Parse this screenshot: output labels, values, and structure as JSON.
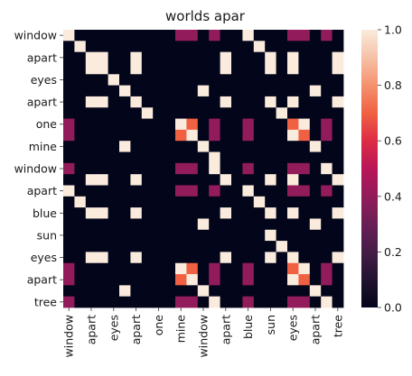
{
  "chart_data": {
    "type": "heatmap",
    "title": "worlds apar",
    "xlabel": "",
    "ylabel": "",
    "row_labels": [
      "window",
      "apart",
      "eyes",
      "apart",
      "one",
      "mine",
      "window",
      "apart",
      "blue",
      "sun",
      "eyes",
      "apart",
      "tree"
    ],
    "col_labels": [
      "window",
      "apart",
      "eyes",
      "apart",
      "one",
      "mine",
      "window",
      "apart",
      "blue",
      "sun",
      "eyes",
      "apart",
      "tree"
    ],
    "cell_labels": [
      "window",
      "",
      "apart",
      "",
      "eyes",
      "",
      "apart",
      "",
      "one",
      "",
      "mine",
      "",
      "window",
      "",
      "apart",
      "",
      "blue",
      "",
      "sun",
      "",
      "eyes",
      "",
      "apart",
      "",
      "tree",
      ""
    ],
    "grid_size": 25,
    "colorbar": {
      "range": [
        0,
        1
      ],
      "ticks": [
        "0.0",
        "0.2",
        "0.4",
        "0.6",
        "0.8",
        "1.0"
      ]
    },
    "colormap": "rocket",
    "grid": false,
    "values": [
      [
        1,
        0,
        0,
        0,
        0,
        0,
        0,
        0,
        0,
        0,
        0.4,
        0.4,
        0,
        0.4,
        0,
        0,
        1,
        0,
        0,
        0,
        0.4,
        0.4,
        0,
        0.4,
        0
      ],
      [
        0,
        1,
        0,
        0,
        0,
        0,
        0,
        0,
        0,
        0,
        0,
        0,
        0,
        0,
        0,
        0,
        0,
        1,
        0,
        0,
        0,
        0,
        0,
        0,
        0
      ],
      [
        0,
        0,
        1,
        1,
        0,
        0,
        1,
        0,
        0,
        0,
        0,
        0,
        0,
        0,
        1,
        0,
        0,
        0,
        1,
        0,
        1,
        0,
        0,
        0,
        1
      ],
      [
        0,
        0,
        1,
        1,
        0,
        0,
        1,
        0,
        0,
        0,
        0,
        0,
        0,
        0,
        1,
        0,
        0,
        0,
        1,
        0,
        1,
        0,
        0,
        0,
        1
      ],
      [
        0,
        0,
        0,
        0,
        1,
        0,
        0,
        0,
        0,
        0,
        0,
        0,
        0,
        0,
        0,
        0,
        0,
        0,
        0,
        0,
        0,
        0,
        0,
        0,
        0
      ],
      [
        0,
        0,
        0,
        0,
        0,
        1,
        0,
        0,
        0,
        0,
        0,
        0,
        1,
        0,
        0,
        0,
        0,
        0,
        0,
        0,
        0,
        0,
        1,
        0,
        0
      ],
      [
        0,
        0,
        1,
        1,
        0,
        0,
        1,
        0,
        0,
        0,
        0,
        0,
        0,
        0,
        1,
        0,
        0,
        0,
        1,
        0,
        1,
        0,
        0,
        0,
        1
      ],
      [
        0,
        0,
        0,
        0,
        0,
        0,
        0,
        1,
        0,
        0,
        0,
        0,
        0,
        0,
        0,
        0,
        0,
        0,
        0,
        1,
        0,
        0,
        0,
        0,
        0
      ],
      [
        0.4,
        0,
        0,
        0,
        0,
        0,
        0,
        0,
        0,
        0,
        1,
        0.7,
        0,
        0.4,
        0,
        0,
        0.4,
        0,
        0,
        0,
        0.7,
        1,
        0,
        0.4,
        0
      ],
      [
        0.4,
        0,
        0,
        0,
        0,
        0,
        0,
        0,
        0,
        0,
        0.7,
        1,
        0,
        0.4,
        0,
        0,
        0.4,
        0,
        0,
        0,
        1,
        0.7,
        0,
        0.4,
        0
      ],
      [
        0,
        0,
        0,
        0,
        0,
        1,
        0,
        0,
        0,
        0,
        0,
        0,
        1,
        0,
        0,
        0,
        0,
        0,
        0,
        0,
        0,
        0,
        1,
        0,
        0
      ],
      [
        0,
        0,
        0,
        0,
        0,
        0,
        0,
        0,
        0,
        0,
        0,
        0,
        0,
        1,
        0,
        0,
        0,
        0,
        0,
        0,
        0,
        0,
        0,
        0,
        0
      ],
      [
        0.4,
        0,
        0,
        0,
        0,
        0,
        0,
        0,
        0,
        0,
        0.4,
        0.4,
        0,
        1,
        0,
        0,
        0.4,
        0,
        0,
        0,
        0.4,
        0.4,
        0,
        1,
        0
      ],
      [
        0,
        0,
        1,
        1,
        0,
        0,
        1,
        0,
        0,
        0,
        0,
        0,
        0,
        0,
        1,
        0,
        0,
        0,
        1,
        0,
        1,
        0,
        0,
        0,
        1
      ],
      [
        1,
        0,
        0,
        0,
        0,
        0,
        0,
        0,
        0,
        0,
        0.4,
        0.4,
        0,
        0.4,
        0,
        0,
        1,
        0,
        0,
        0,
        0.4,
        0.4,
        0,
        0.4,
        0
      ],
      [
        0,
        1,
        0,
        0,
        0,
        0,
        0,
        0,
        0,
        0,
        0,
        0,
        0,
        0,
        0,
        0,
        0,
        1,
        0,
        0,
        0,
        0,
        0,
        0,
        0
      ],
      [
        0,
        0,
        1,
        1,
        0,
        0,
        1,
        0,
        0,
        0,
        0,
        0,
        0,
        0,
        1,
        0,
        0,
        0,
        1,
        0,
        1,
        0,
        0,
        0,
        1
      ],
      [
        0,
        0,
        0,
        0,
        0,
        0,
        0,
        0,
        0,
        0,
        0,
        0,
        1,
        0,
        0,
        0,
        0,
        0,
        0,
        0,
        0,
        0,
        1,
        0,
        0
      ],
      [
        0,
        0,
        0,
        0,
        0,
        0,
        0,
        0,
        0,
        0,
        0,
        0,
        0,
        0,
        0,
        0,
        0,
        0,
        1,
        0,
        0,
        0,
        0,
        0,
        0
      ],
      [
        0,
        0,
        0,
        0,
        0,
        0,
        0,
        0,
        0,
        0,
        0,
        0,
        0,
        0,
        0,
        0,
        0,
        0,
        0,
        1,
        0,
        0,
        0,
        0,
        0
      ],
      [
        0,
        0,
        1,
        1,
        0,
        0,
        1,
        0,
        0,
        0,
        0,
        0,
        0,
        0,
        1,
        0,
        0,
        0,
        1,
        0,
        1,
        0,
        0,
        0,
        1
      ],
      [
        0.4,
        0,
        0,
        0,
        0,
        0,
        0,
        0,
        0,
        0,
        1,
        0.7,
        0,
        0.4,
        0,
        0,
        0.4,
        0,
        0,
        0,
        0.7,
        1,
        0,
        0.4,
        0
      ],
      [
        0.4,
        0,
        0,
        0,
        0,
        0,
        0,
        0,
        0,
        0,
        0.7,
        1,
        0,
        0.4,
        0,
        0,
        0.4,
        0,
        0,
        0,
        1,
        0.7,
        0,
        0.4,
        0
      ],
      [
        0,
        0,
        0,
        0,
        0,
        1,
        0,
        0,
        0,
        0,
        0,
        0,
        1,
        0,
        0,
        0,
        0,
        0,
        0,
        0,
        0,
        0,
        1,
        0,
        0
      ],
      [
        0.4,
        0,
        0,
        0,
        0,
        0,
        0,
        0,
        0,
        0,
        0.4,
        0.4,
        0,
        1,
        0,
        0,
        0.4,
        0,
        0,
        0,
        0.4,
        0.4,
        0,
        1,
        0
      ]
    ]
  }
}
